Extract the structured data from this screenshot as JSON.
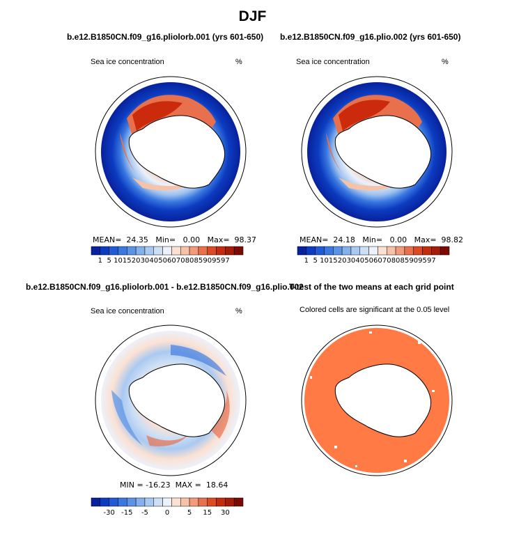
{
  "figure_title": "DJF",
  "panels": [
    {
      "title": "b.e12.B1850CN.f09_g16.pliolorb.001 (yrs 601-650)",
      "left_label": "Sea ice concentration",
      "right_label": "%",
      "stats": "MEAN=  24.35   Min=   0.00   Max=  98.37"
    },
    {
      "title": "b.e12.B1850CN.f09_g16.plio.002 (yrs 601-650)",
      "left_label": "Sea ice concentration",
      "right_label": "%",
      "stats": "MEAN=  24.18   Min=   0.00   Max=  98.82"
    },
    {
      "title": "b.e12.B1850CN.f09_g16.pliolorb.001 - b.e12.B1850CN.f09_g16.plio.002",
      "left_label": "Sea ice concentration",
      "right_label": "%",
      "stats": "MIN = -16.23  MAX =  18.64"
    },
    {
      "title": "T-test of the two means at each grid point",
      "subtitle": "Colored cells are significant at the 0.05 level"
    }
  ],
  "colors": {
    "ocean_ice_low": "#08219c",
    "ice_high": "#cc2a0c",
    "significance": "#ff7a45",
    "land": "#ffffff",
    "coast": "#000000"
  },
  "chart_data": [
    {
      "type": "heatmap",
      "title": "b.e12.B1850CN.f09_g16.pliolorb.001 (yrs 601-650)",
      "variable": "Sea ice concentration",
      "units": "%",
      "mean": 24.35,
      "min": 0.0,
      "max": 98.37,
      "colorbar_levels": [
        "1",
        "5",
        "10",
        "15",
        "20",
        "30",
        "40",
        "50",
        "60",
        "70",
        "80",
        "85",
        "90",
        "95",
        "97"
      ],
      "colorbar_colors": [
        "#08219c",
        "#0c3cc0",
        "#1f5bd8",
        "#3a78e0",
        "#5b93e6",
        "#84b0ec",
        "#aac9f1",
        "#cddff5",
        "#ecf1fa",
        "#fbe1d3",
        "#f6c2a8",
        "#f19b7a",
        "#e8704c",
        "#dc4a26",
        "#c52c0c",
        "#a41d08",
        "#7c0a02"
      ]
    },
    {
      "type": "heatmap",
      "title": "b.e12.B1850CN.f09_g16.plio.002 (yrs 601-650)",
      "variable": "Sea ice concentration",
      "units": "%",
      "mean": 24.18,
      "min": 0.0,
      "max": 98.82,
      "colorbar_levels": [
        "1",
        "5",
        "10",
        "15",
        "20",
        "30",
        "40",
        "50",
        "60",
        "70",
        "80",
        "85",
        "90",
        "95",
        "97"
      ],
      "colorbar_colors": [
        "#08219c",
        "#0c3cc0",
        "#1f5bd8",
        "#3a78e0",
        "#5b93e6",
        "#84b0ec",
        "#aac9f1",
        "#cddff5",
        "#ecf1fa",
        "#fbe1d3",
        "#f6c2a8",
        "#f19b7a",
        "#e8704c",
        "#dc4a26",
        "#c52c0c",
        "#a41d08",
        "#7c0a02"
      ]
    },
    {
      "type": "heatmap",
      "title": "b.e12.B1850CN.f09_g16.pliolorb.001 - b.e12.B1850CN.f09_g16.plio.002",
      "variable": "Sea ice concentration",
      "units": "%",
      "min": -16.23,
      "max": 18.64,
      "colorbar_labels": [
        "-30",
        "-15",
        "-5",
        "0",
        "5",
        "15",
        "30"
      ],
      "colorbar_colors": [
        "#08219c",
        "#0c3cc0",
        "#1f5bd8",
        "#3a78e0",
        "#5b93e6",
        "#84b0ec",
        "#aac9f1",
        "#cddff5",
        "#ecf1fa",
        "#fbe1d3",
        "#f6c2a8",
        "#f19b7a",
        "#e8704c",
        "#dc4a26",
        "#c52c0c",
        "#a41d08",
        "#7c0a02"
      ]
    },
    {
      "type": "heatmap",
      "title": "T-test of the two means at each grid point",
      "note": "Colored cells are significant at the 0.05 level",
      "significance_level": 0.05
    }
  ]
}
